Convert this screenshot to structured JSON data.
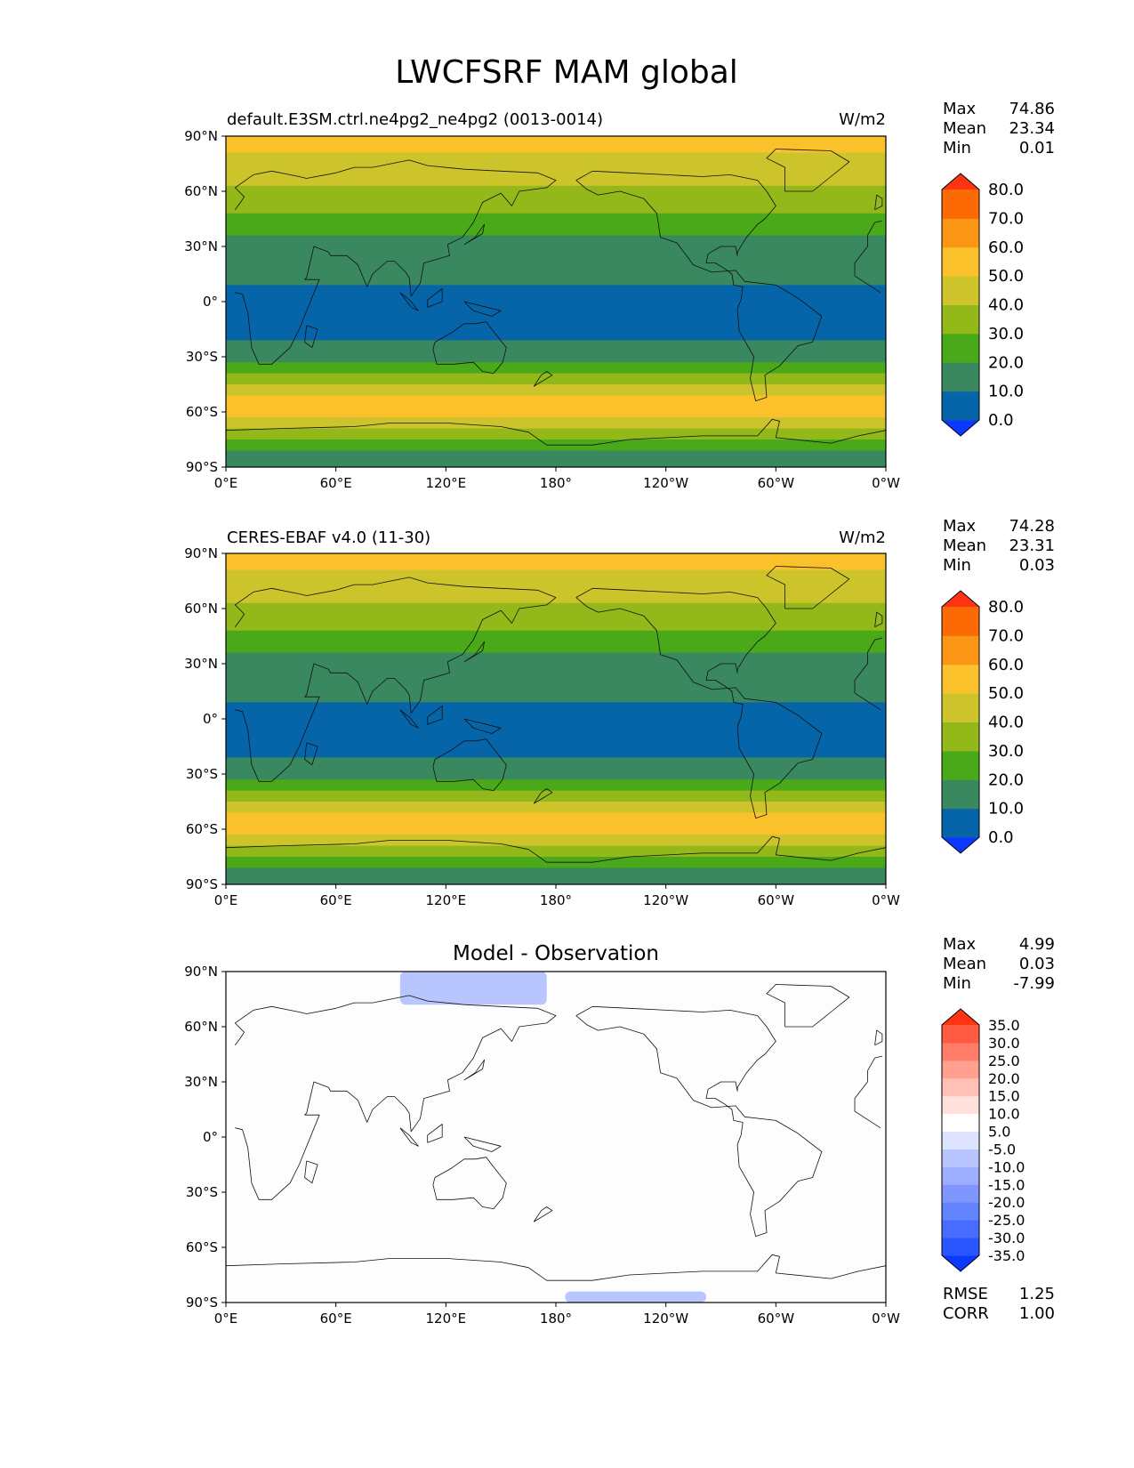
{
  "page": {
    "title": "LWCFSRF MAM global"
  },
  "chart_data": [
    {
      "type": "heatmap",
      "title_left": "default.E3SM.ctrl.ne4pg2_ne4pg2 (0013-0014)",
      "title_right": "W/m2",
      "x_ticks": [
        "0°E",
        "60°E",
        "120°E",
        "180°",
        "120°W",
        "60°W",
        "0°W"
      ],
      "y_ticks": [
        "90°N",
        "60°N",
        "30°N",
        "0°",
        "30°S",
        "60°S",
        "90°S"
      ],
      "xlim": [
        0,
        360
      ],
      "ylim": [
        -90,
        90
      ],
      "stats": [
        {
          "label": "Max",
          "value": "74.86"
        },
        {
          "label": "Mean",
          "value": "23.34"
        },
        {
          "label": "Min",
          "value": "0.01"
        }
      ],
      "colorbar": {
        "levels": [
          "0.0",
          "10.0",
          "20.0",
          "30.0",
          "40.0",
          "50.0",
          "60.0",
          "70.0",
          "80.0"
        ],
        "colors": [
          "#0b39ff",
          "#0665a9",
          "#3a8860",
          "#4aa918",
          "#92b81a",
          "#cdc42b",
          "#fbc12b",
          "#fb9514",
          "#fb6a05",
          "#ff3512"
        ]
      },
      "zonal_profile": [
        {
          "lat": 90,
          "value": 55
        },
        {
          "lat": 75,
          "value": 45
        },
        {
          "lat": 60,
          "value": 38
        },
        {
          "lat": 45,
          "value": 28
        },
        {
          "lat": 35,
          "value": 18
        },
        {
          "lat": 20,
          "value": 12
        },
        {
          "lat": 0,
          "value": 8
        },
        {
          "lat": -20,
          "value": 10
        },
        {
          "lat": -32,
          "value": 18
        },
        {
          "lat": -40,
          "value": 32
        },
        {
          "lat": -50,
          "value": 50
        },
        {
          "lat": -60,
          "value": 58
        },
        {
          "lat": -70,
          "value": 40
        },
        {
          "lat": -80,
          "value": 20
        },
        {
          "lat": -90,
          "value": 15
        }
      ]
    },
    {
      "type": "heatmap",
      "title_left": "CERES-EBAF v4.0 (11-30)",
      "title_right": "W/m2",
      "x_ticks": [
        "0°E",
        "60°E",
        "120°E",
        "180°",
        "120°W",
        "60°W",
        "0°W"
      ],
      "y_ticks": [
        "90°N",
        "60°N",
        "30°N",
        "0°",
        "30°S",
        "60°S",
        "90°S"
      ],
      "xlim": [
        0,
        360
      ],
      "ylim": [
        -90,
        90
      ],
      "stats": [
        {
          "label": "Max",
          "value": "74.28"
        },
        {
          "label": "Mean",
          "value": "23.31"
        },
        {
          "label": "Min",
          "value": "0.03"
        }
      ],
      "colorbar": {
        "levels": [
          "0.0",
          "10.0",
          "20.0",
          "30.0",
          "40.0",
          "50.0",
          "60.0",
          "70.0",
          "80.0"
        ],
        "colors": [
          "#0b39ff",
          "#0665a9",
          "#3a8860",
          "#4aa918",
          "#92b81a",
          "#cdc42b",
          "#fbc12b",
          "#fb9514",
          "#fb6a05",
          "#ff3512"
        ]
      },
      "zonal_profile": [
        {
          "lat": 90,
          "value": 55
        },
        {
          "lat": 75,
          "value": 45
        },
        {
          "lat": 60,
          "value": 38
        },
        {
          "lat": 45,
          "value": 28
        },
        {
          "lat": 35,
          "value": 18
        },
        {
          "lat": 20,
          "value": 12
        },
        {
          "lat": 0,
          "value": 8
        },
        {
          "lat": -20,
          "value": 10
        },
        {
          "lat": -32,
          "value": 18
        },
        {
          "lat": -40,
          "value": 32
        },
        {
          "lat": -50,
          "value": 50
        },
        {
          "lat": -60,
          "value": 58
        },
        {
          "lat": -70,
          "value": 40
        },
        {
          "lat": -80,
          "value": 20
        },
        {
          "lat": -90,
          "value": 15
        }
      ]
    },
    {
      "type": "heatmap",
      "title_center": "Model - Observation",
      "x_ticks": [
        "0°E",
        "60°E",
        "120°E",
        "180°",
        "120°W",
        "60°W",
        "0°W"
      ],
      "y_ticks": [
        "90°N",
        "60°N",
        "30°N",
        "0°",
        "30°S",
        "60°S",
        "90°S"
      ],
      "xlim": [
        0,
        360
      ],
      "ylim": [
        -90,
        90
      ],
      "stats": [
        {
          "label": "Max",
          "value": "4.99"
        },
        {
          "label": "Mean",
          "value": "0.03"
        },
        {
          "label": "Min",
          "value": "-7.99"
        }
      ],
      "stats_bottom": [
        {
          "label": "RMSE",
          "value": "1.25"
        },
        {
          "label": "CORR",
          "value": "1.00"
        }
      ],
      "colorbar": {
        "levels": [
          "-35.0",
          "-30.0",
          "-25.0",
          "-20.0",
          "-15.0",
          "-10.0",
          "-5.0",
          "5.0",
          "10.0",
          "15.0",
          "20.0",
          "25.0",
          "30.0",
          "35.0"
        ],
        "colors": [
          "#0b39ff",
          "#2a55ff",
          "#476cff",
          "#6383ff",
          "#8096ff",
          "#9dadff",
          "#b9c5ff",
          "#dee4ff",
          "#ffffff",
          "#ffe1dc",
          "#ffc0b6",
          "#ffa090",
          "#ff7c68",
          "#ff5a42",
          "#ff3512"
        ]
      },
      "anomalies": [
        {
          "lon_min": 95,
          "lon_max": 175,
          "lat_min": 72,
          "lat_max": 90,
          "value": -6
        },
        {
          "lon_min": 185,
          "lon_max": 262,
          "lat_min": -90,
          "lat_max": -84,
          "value": -6
        }
      ]
    }
  ]
}
